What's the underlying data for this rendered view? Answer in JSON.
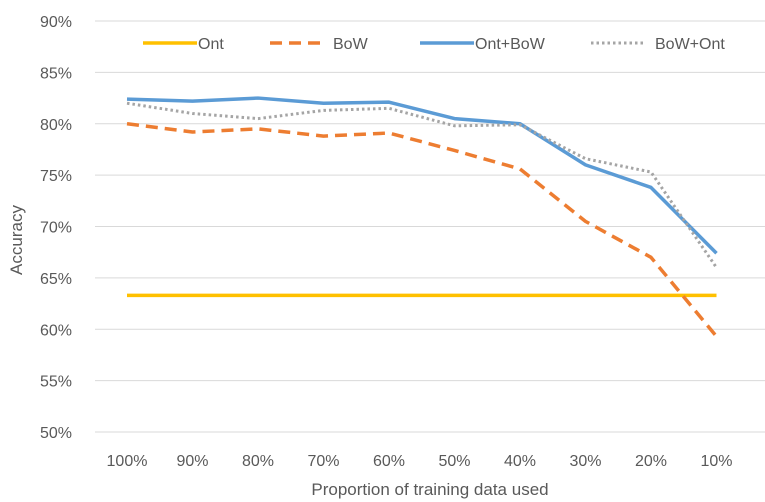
{
  "chart_data": {
    "type": "line",
    "title": "",
    "xlabel": "Proportion of training data used",
    "ylabel": "Accuracy",
    "categories": [
      "100%",
      "90%",
      "80%",
      "70%",
      "60%",
      "50%",
      "40%",
      "30%",
      "20%",
      "10%"
    ],
    "ylim": [
      50,
      90
    ],
    "yticks": [
      50,
      55,
      60,
      65,
      70,
      75,
      80,
      85,
      90
    ],
    "ytick_labels": [
      "50%",
      "55%",
      "60%",
      "65%",
      "70%",
      "75%",
      "80%",
      "85%",
      "90%"
    ],
    "grid": true,
    "legend_position": "top",
    "series": [
      {
        "name": "Ont",
        "values": [
          63.3,
          63.3,
          63.3,
          63.3,
          63.3,
          63.3,
          63.3,
          63.3,
          63.3,
          63.3
        ],
        "color": "#FFC000",
        "line_style": "solid"
      },
      {
        "name": "BoW",
        "values": [
          80.0,
          79.2,
          79.5,
          78.8,
          79.1,
          77.4,
          75.6,
          70.5,
          67.0,
          59.3
        ],
        "color": "#ED7D31",
        "line_style": "dashed"
      },
      {
        "name": "Ont+BoW",
        "values": [
          82.4,
          82.2,
          82.5,
          82.0,
          82.1,
          80.5,
          80.0,
          76.0,
          73.8,
          67.4
        ],
        "color": "#5B9BD5",
        "line_style": "solid"
      },
      {
        "name": "BoW+Ont",
        "values": [
          82.0,
          81.0,
          80.5,
          81.3,
          81.5,
          79.8,
          79.9,
          76.6,
          75.3,
          66.0
        ],
        "color": "#A5A5A5",
        "line_style": "dotted"
      }
    ]
  }
}
